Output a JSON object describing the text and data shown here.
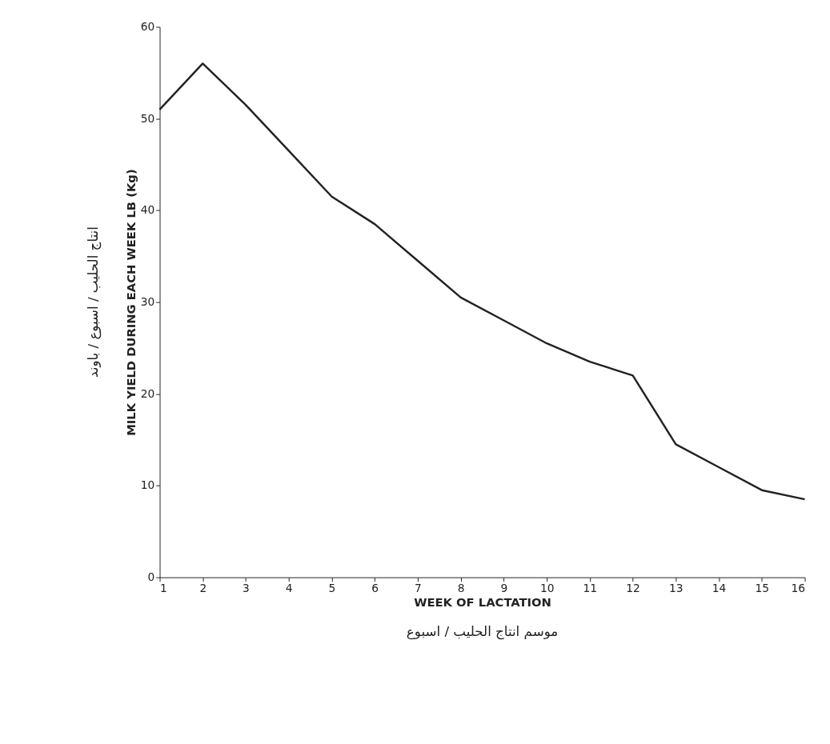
{
  "chart_data": {
    "type": "line",
    "xlabel": "WEEK OF LACTATION",
    "ylabel": "MILK YIELD DURING EACH WEEK LB (Kg)",
    "annotations": [
      "موسم انتاج الحليب / اسبوع",
      "انتاج الحليب / اسبوع / باوند"
    ],
    "x": [
      1,
      2,
      3,
      4,
      5,
      6,
      7,
      8,
      9,
      10,
      11,
      12,
      13,
      14,
      15,
      16
    ],
    "series": [
      {
        "color": "#222222",
        "values": [
          51,
          56,
          51.5,
          46.5,
          41.5,
          38.5,
          34.5,
          30.5,
          28,
          25.5,
          23.5,
          22,
          14.5,
          12,
          9.5,
          8.5
        ]
      }
    ],
    "xlim": [
      1,
      16
    ],
    "xticks": [
      1,
      2,
      3,
      4,
      5,
      6,
      7,
      8,
      9,
      10,
      11,
      12,
      13,
      14,
      15,
      16
    ],
    "ylim": [
      0,
      60
    ],
    "yticks": [
      0,
      10,
      20,
      30,
      40,
      50,
      60
    ],
    "grid": false,
    "marker": "none",
    "line_style": "solid"
  }
}
